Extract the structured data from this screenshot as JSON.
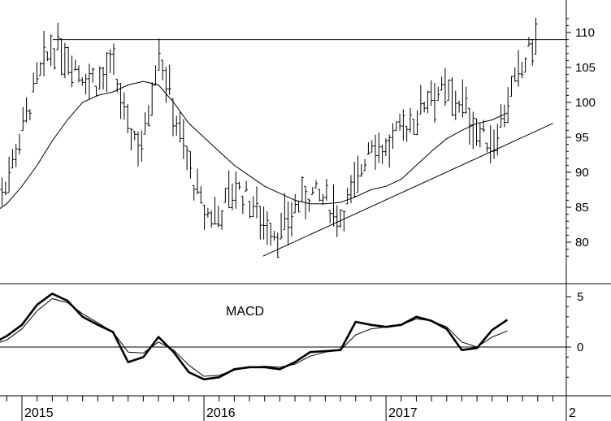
{
  "chart_data": [
    {
      "type": "ohlc-bar",
      "panel": "price",
      "ylim": [
        77,
        113
      ],
      "yticks": [
        80,
        85,
        90,
        95,
        100,
        105,
        110
      ],
      "ytick_labels": [
        "80",
        "85",
        "90",
        "95",
        "100",
        "105",
        "110"
      ],
      "x_range": [
        "2014-11",
        "2017-12"
      ],
      "resistance_level": 109,
      "trendline": {
        "start": {
          "x": "2016-05",
          "y": 78
        },
        "end": {
          "x": "2017-12",
          "y": 97
        }
      },
      "moving_average": [
        [
          "2014-11",
          84
        ],
        [
          "2014-12",
          85.5
        ],
        [
          "2015-01",
          88
        ],
        [
          "2015-02",
          91
        ],
        [
          "2015-03",
          94.5
        ],
        [
          "2015-04",
          97.5
        ],
        [
          "2015-05",
          100
        ],
        [
          "2015-06",
          101
        ],
        [
          "2015-07",
          101.5
        ],
        [
          "2015-08",
          102.5
        ],
        [
          "2015-09",
          103
        ],
        [
          "2015-10",
          102.5
        ],
        [
          "2015-11",
          100
        ],
        [
          "2015-12",
          97
        ],
        [
          "2016-01",
          95
        ],
        [
          "2016-02",
          93
        ],
        [
          "2016-03",
          91
        ],
        [
          "2016-04",
          89.5
        ],
        [
          "2016-05",
          88
        ],
        [
          "2016-06",
          87
        ],
        [
          "2016-07",
          86
        ],
        [
          "2016-08",
          85.5
        ],
        [
          "2016-09",
          85.5
        ],
        [
          "2016-10",
          85.7
        ],
        [
          "2016-11",
          86.5
        ],
        [
          "2016-12",
          87.5
        ],
        [
          "2017-01",
          88
        ],
        [
          "2017-02",
          89
        ],
        [
          "2017-03",
          91
        ],
        [
          "2017-04",
          93
        ],
        [
          "2017-05",
          94.8
        ],
        [
          "2017-06",
          96
        ],
        [
          "2017-07",
          97
        ],
        [
          "2017-08",
          97.5
        ],
        [
          "2017-09",
          98.5
        ]
      ],
      "price_path": [
        [
          "2014-11",
          87
        ],
        [
          "2014-12",
          89
        ],
        [
          "2015-01",
          96
        ],
        [
          "2015-02",
          103
        ],
        [
          "2015-03",
          108
        ],
        [
          "2015-04",
          107
        ],
        [
          "2015-05",
          104
        ],
        [
          "2015-06",
          103
        ],
        [
          "2015-07",
          105
        ],
        [
          "2015-08",
          96
        ],
        [
          "2015-09",
          94
        ],
        [
          "2015-10",
          108
        ],
        [
          "2015-11",
          99
        ],
        [
          "2015-12",
          91
        ],
        [
          "2016-01",
          84
        ],
        [
          "2016-02",
          84
        ],
        [
          "2016-03",
          88
        ],
        [
          "2016-04",
          86
        ],
        [
          "2016-05",
          83
        ],
        [
          "2016-06",
          81
        ],
        [
          "2016-07",
          85
        ],
        [
          "2016-08",
          87
        ],
        [
          "2016-09",
          86
        ],
        [
          "2016-10",
          84
        ],
        [
          "2016-11",
          88
        ],
        [
          "2016-12",
          95
        ],
        [
          "2017-01",
          93
        ],
        [
          "2017-02",
          96
        ],
        [
          "2017-03",
          98
        ],
        [
          "2017-04",
          102
        ],
        [
          "2017-05",
          101
        ],
        [
          "2017-06",
          100
        ],
        [
          "2017-07",
          96
        ],
        [
          "2017-08",
          94
        ],
        [
          "2017-09",
          100
        ],
        [
          "2017-10",
          105
        ],
        [
          "2017-11",
          110
        ]
      ]
    },
    {
      "type": "line",
      "panel": "macd",
      "annotation": "MACD",
      "ylim": [
        -4,
        6
      ],
      "yticks": [
        0,
        5
      ],
      "ytick_labels": [
        "0",
        "5"
      ],
      "zero_line": 0,
      "series": [
        {
          "style": "thick",
          "values": [
            [
              "2014-11",
              0.3
            ],
            [
              "2014-12",
              1.1
            ],
            [
              "2015-01",
              2.2
            ],
            [
              "2015-02",
              4.2
            ],
            [
              "2015-03",
              5.3
            ],
            [
              "2015-04",
              4.6
            ],
            [
              "2015-05",
              3.0
            ],
            [
              "2015-06",
              2.2
            ],
            [
              "2015-07",
              1.5
            ],
            [
              "2015-08",
              -1.5
            ],
            [
              "2015-09",
              -1.0
            ],
            [
              "2015-10",
              1.0
            ],
            [
              "2015-11",
              -0.5
            ],
            [
              "2015-12",
              -2.5
            ],
            [
              "2016-01",
              -3.2
            ],
            [
              "2016-02",
              -3.0
            ],
            [
              "2016-03",
              -2.2
            ],
            [
              "2016-04",
              -2.0
            ],
            [
              "2016-05",
              -2.0
            ],
            [
              "2016-06",
              -2.2
            ],
            [
              "2016-07",
              -1.5
            ],
            [
              "2016-08",
              -0.5
            ],
            [
              "2016-09",
              -0.4
            ],
            [
              "2016-10",
              -0.3
            ],
            [
              "2016-11",
              2.5
            ],
            [
              "2016-12",
              2.2
            ],
            [
              "2017-01",
              2.0
            ],
            [
              "2017-02",
              2.2
            ],
            [
              "2017-03",
              3.0
            ],
            [
              "2017-04",
              2.6
            ],
            [
              "2017-05",
              1.8
            ],
            [
              "2017-06",
              -0.3
            ],
            [
              "2017-07",
              -0.1
            ],
            [
              "2017-08",
              1.7
            ],
            [
              "2017-09",
              2.7
            ]
          ]
        },
        {
          "style": "thin",
          "values": [
            [
              "2014-11",
              0.2
            ],
            [
              "2014-12",
              0.7
            ],
            [
              "2015-01",
              1.8
            ],
            [
              "2015-02",
              3.6
            ],
            [
              "2015-03",
              4.8
            ],
            [
              "2015-04",
              4.4
            ],
            [
              "2015-05",
              3.3
            ],
            [
              "2015-06",
              2.4
            ],
            [
              "2015-07",
              1.5
            ],
            [
              "2015-08",
              -0.5
            ],
            [
              "2015-09",
              -0.6
            ],
            [
              "2015-10",
              0.5
            ],
            [
              "2015-11",
              -0.3
            ],
            [
              "2015-12",
              -1.8
            ],
            [
              "2016-01",
              -2.9
            ],
            [
              "2016-02",
              -2.8
            ],
            [
              "2016-03",
              -2.3
            ],
            [
              "2016-04",
              -2.0
            ],
            [
              "2016-05",
              -1.9
            ],
            [
              "2016-06",
              -2.0
            ],
            [
              "2016-07",
              -1.7
            ],
            [
              "2016-08",
              -0.9
            ],
            [
              "2016-09",
              -0.5
            ],
            [
              "2016-10",
              -0.3
            ],
            [
              "2016-11",
              1.2
            ],
            [
              "2016-12",
              1.8
            ],
            [
              "2017-01",
              2.0
            ],
            [
              "2017-02",
              2.2
            ],
            [
              "2017-03",
              2.8
            ],
            [
              "2017-04",
              2.6
            ],
            [
              "2017-05",
              2.0
            ],
            [
              "2017-06",
              0.5
            ],
            [
              "2017-07",
              0.0
            ],
            [
              "2017-08",
              1.0
            ],
            [
              "2017-09",
              1.6
            ]
          ]
        }
      ]
    }
  ],
  "x_axis": {
    "labels": [
      "2015",
      "2016",
      "2017",
      "2"
    ]
  }
}
